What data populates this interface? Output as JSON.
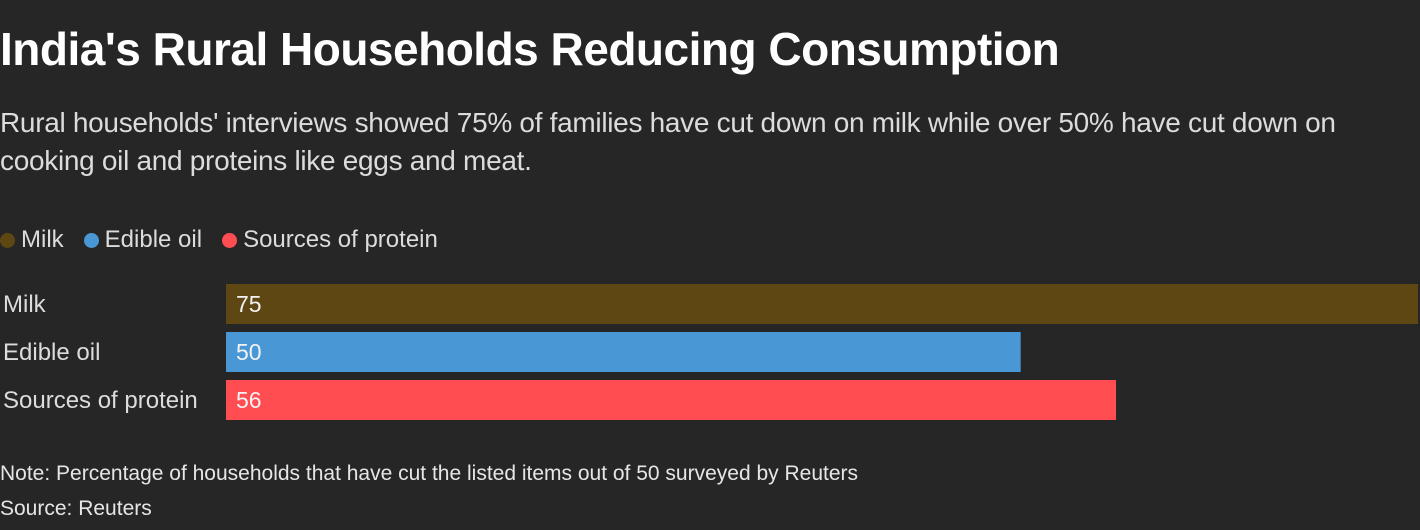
{
  "title": "India's Rural Households Reducing Consumption",
  "subtitle": "Rural households' interviews showed 75% of families have cut down on milk while over 50% have cut down on cooking oil and proteins like eggs and meat.",
  "legend": [
    {
      "label": "Milk",
      "color": "#5e4713"
    },
    {
      "label": "Edible oil",
      "color": "#4a97d6"
    },
    {
      "label": "Sources of protein",
      "color": "#ff4d52"
    }
  ],
  "chart_data": {
    "type": "bar",
    "orientation": "horizontal",
    "categories": [
      "Milk",
      "Edible oil",
      "Sources of protein"
    ],
    "values": [
      75,
      50,
      56
    ],
    "colors": [
      "#5e4713",
      "#4a97d6",
      "#ff4d52"
    ],
    "xlim": [
      0,
      75
    ],
    "title": "India's Rural Households Reducing Consumption",
    "xlabel": "",
    "ylabel": "",
    "grid": false,
    "legend_position": "top-left"
  },
  "footer": {
    "note": "Note: Percentage of households that have cut the listed items out of 50 surveyed by Reuters",
    "source": "Source: Reuters"
  }
}
